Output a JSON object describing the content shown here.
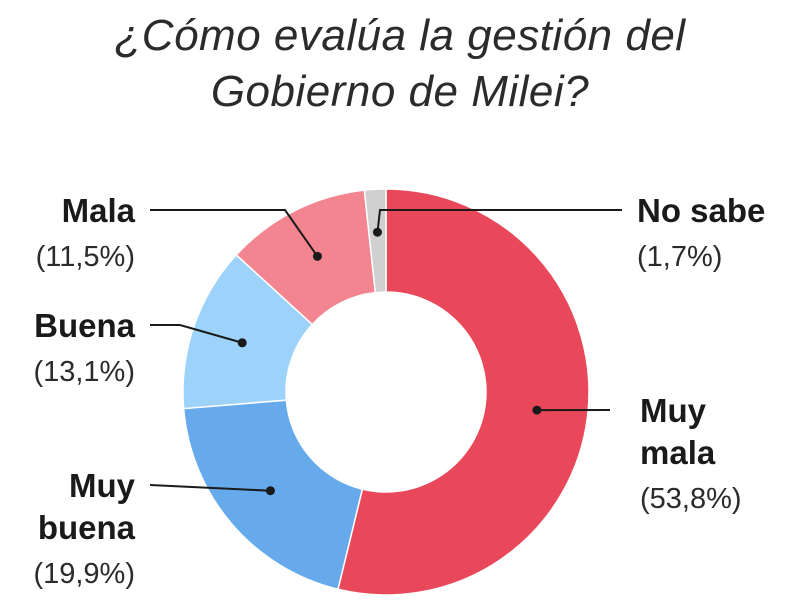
{
  "title_lines": [
    "¿Cómo evalúa la gestión del",
    "Gobierno de Milei?"
  ],
  "chart_data": {
    "type": "pie",
    "variant": "donut",
    "title": "¿Cómo evalúa la gestión del Gobierno de Milei?",
    "categories": [
      "Muy mala",
      "Muy buena",
      "Buena",
      "Mala",
      "No sabe"
    ],
    "values": [
      53.8,
      19.9,
      13.1,
      11.5,
      1.7
    ],
    "value_labels": [
      "(53,8%)",
      "(19,9%)",
      "(13,1%)",
      "(11,5%)",
      "(1,7%)"
    ],
    "label_lines": [
      [
        "Muy",
        "mala"
      ],
      [
        "Muy",
        "buena"
      ],
      [
        "Buena"
      ],
      [
        "Mala"
      ],
      [
        "No sabe"
      ]
    ],
    "colors": [
      "#e8485a",
      "#66aaeb",
      "#9dd3fa",
      "#f28590",
      "#d0d0d0"
    ],
    "legend": "none"
  }
}
